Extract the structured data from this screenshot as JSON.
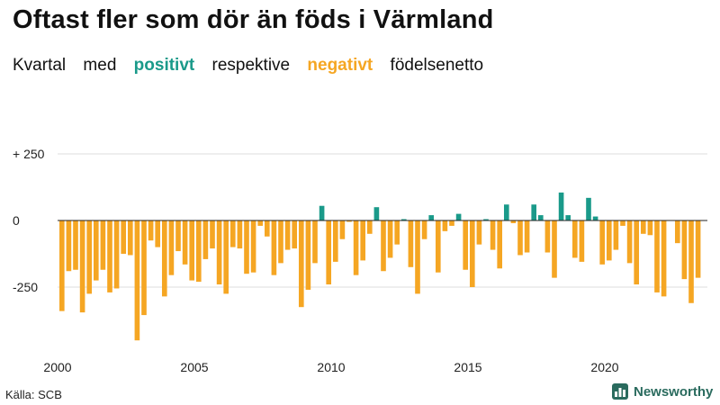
{
  "title": "Oftast fler som dör än föds i Värmland",
  "subtitle": {
    "w1": "Kvartal",
    "w2": "med",
    "positive": "positivt",
    "w3": "respektive",
    "negative": "negativt",
    "w4": "födelsenetto"
  },
  "source": "Källa: SCB",
  "brand": "Newsworthy",
  "colors": {
    "positive": "#1a9a8a",
    "negative": "#f5a623",
    "grid": "#dddddd",
    "zero": "#222222",
    "brand": "#2a6b5e"
  },
  "chart_data": {
    "type": "bar",
    "title": "Oftast fler som dör än föds i Värmland",
    "xlabel": "",
    "ylabel": "",
    "ylim": [
      -450,
      280
    ],
    "y_ticks": [
      250,
      0,
      -250
    ],
    "y_tick_labels": [
      "+ 250",
      "0",
      "-250"
    ],
    "x_ticks": [
      2000,
      2005,
      2010,
      2015,
      2020
    ],
    "x_tick_labels": [
      "2000",
      "2005",
      "2010",
      "2015",
      "2020"
    ],
    "start_year": 2000,
    "periods_per_year": 4,
    "values": [
      -340,
      -190,
      -185,
      -345,
      -275,
      -225,
      -185,
      -270,
      -255,
      -125,
      -130,
      -450,
      -355,
      -75,
      -100,
      -285,
      -205,
      -115,
      -165,
      -225,
      -230,
      -145,
      -105,
      -240,
      -275,
      -100,
      -105,
      -200,
      -195,
      -20,
      -60,
      -205,
      -160,
      -110,
      -105,
      -325,
      -260,
      -160,
      55,
      -240,
      -155,
      -70,
      -5,
      -205,
      -150,
      -50,
      50,
      -190,
      -140,
      -90,
      5,
      -175,
      -275,
      -70,
      20,
      -195,
      -40,
      -20,
      25,
      -185,
      -250,
      -90,
      5,
      -110,
      -180,
      60,
      -10,
      -130,
      -120,
      60,
      20,
      -120,
      -215,
      105,
      20,
      -140,
      -155,
      85,
      15,
      -165,
      -150,
      -110,
      -20,
      -160,
      -240,
      -50,
      -55,
      -270,
      -285,
      0,
      -85,
      -220,
      -310,
      -215
    ]
  }
}
